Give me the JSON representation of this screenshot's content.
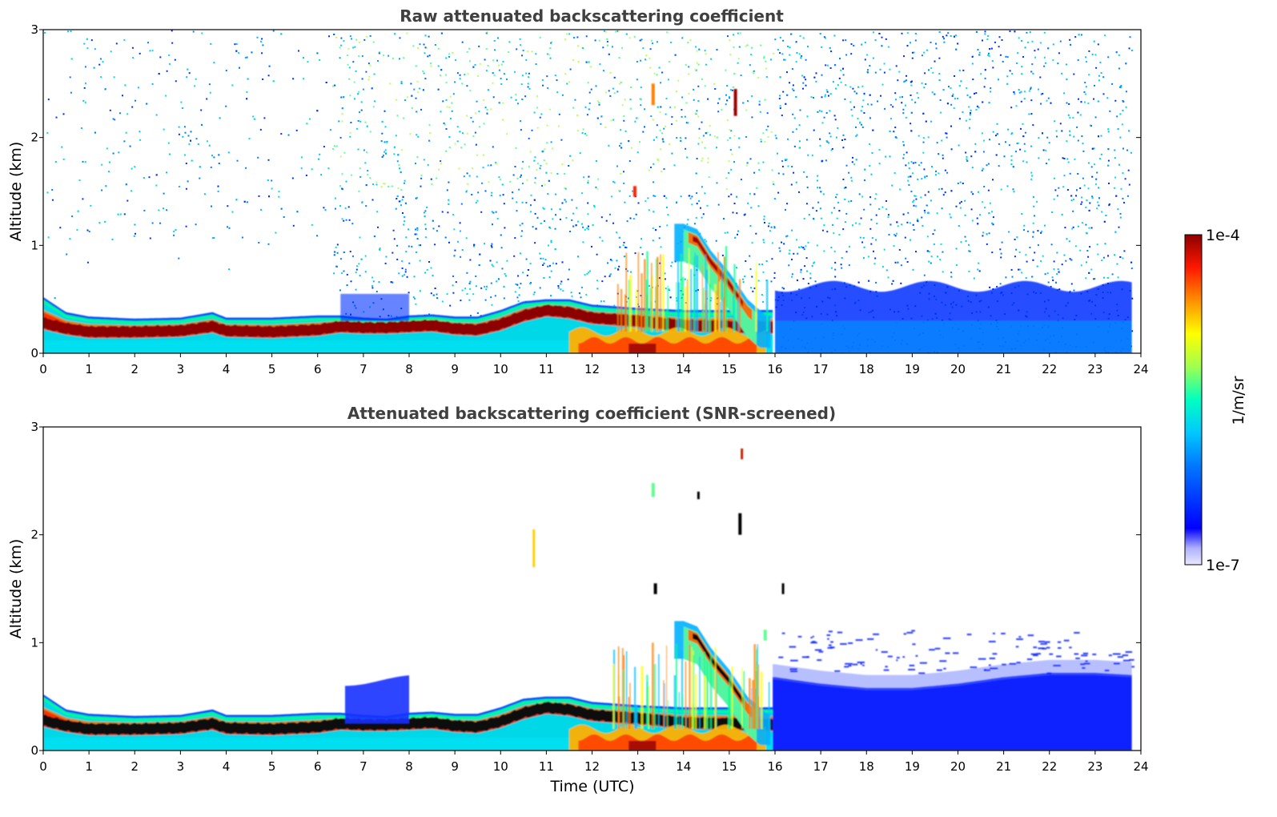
{
  "chart_data": [
    {
      "type": "heatmap",
      "title": "Raw attenuated backscattering coefficient",
      "xlabel": "",
      "ylabel": "Altitude (km)",
      "xlim": [
        0,
        24
      ],
      "ylim": [
        0,
        3
      ],
      "x_ticks": [
        0,
        1,
        2,
        3,
        4,
        5,
        6,
        7,
        8,
        9,
        10,
        11,
        12,
        13,
        14,
        15,
        16,
        17,
        18,
        19,
        20,
        21,
        22,
        23,
        24
      ],
      "y_ticks": [
        0,
        1,
        2,
        3
      ],
      "x_tick_labels": [
        "0",
        "1",
        "2",
        "3",
        "4",
        "5",
        "6",
        "7",
        "8",
        "9",
        "10",
        "11",
        "12",
        "13",
        "14",
        "15",
        "16",
        "17",
        "18",
        "19",
        "20",
        "21",
        "22",
        "23",
        "24"
      ],
      "y_tick_labels": [
        "0",
        "1",
        "2",
        "3"
      ],
      "data_end_time": 23.8,
      "layer_top_km": [
        [
          0,
          0.52
        ],
        [
          0.5,
          0.38
        ],
        [
          1,
          0.34
        ],
        [
          2,
          0.32
        ],
        [
          3,
          0.33
        ],
        [
          3.7,
          0.38
        ],
        [
          4,
          0.33
        ],
        [
          5,
          0.33
        ],
        [
          6,
          0.35
        ],
        [
          6.5,
          0.35
        ],
        [
          7,
          0.33
        ],
        [
          7.5,
          0.32
        ],
        [
          8,
          0.35
        ],
        [
          8.5,
          0.36
        ],
        [
          9,
          0.34
        ],
        [
          9.5,
          0.34
        ],
        [
          10,
          0.4
        ],
        [
          10.5,
          0.48
        ],
        [
          11,
          0.5
        ],
        [
          11.5,
          0.5
        ],
        [
          12,
          0.45
        ],
        [
          13,
          0.42
        ],
        [
          14,
          0.4
        ],
        [
          15,
          0.4
        ],
        [
          15.9,
          0.4
        ]
      ],
      "aerosol_layer_km": [
        [
          0,
          0.28
        ],
        [
          0.5,
          0.23
        ],
        [
          1,
          0.2
        ],
        [
          2,
          0.2
        ],
        [
          3,
          0.21
        ],
        [
          3.7,
          0.25
        ],
        [
          4,
          0.21
        ],
        [
          5,
          0.2
        ],
        [
          6,
          0.22
        ],
        [
          6.5,
          0.25
        ],
        [
          7,
          0.24
        ],
        [
          7.5,
          0.24
        ],
        [
          8,
          0.25
        ],
        [
          8.5,
          0.26
        ],
        [
          9,
          0.23
        ],
        [
          9.5,
          0.22
        ],
        [
          10,
          0.27
        ],
        [
          10.5,
          0.35
        ],
        [
          11,
          0.4
        ],
        [
          11.5,
          0.38
        ],
        [
          12,
          0.33
        ],
        [
          13,
          0.3
        ],
        [
          14,
          0.26
        ],
        [
          15,
          0.25
        ],
        [
          15.9,
          0.24
        ]
      ],
      "convective_plume_km": [
        [
          14.0,
          1.2
        ],
        [
          14.3,
          1.15
        ],
        [
          14.6,
          0.95
        ],
        [
          15.0,
          0.75
        ],
        [
          15.4,
          0.5
        ],
        [
          15.8,
          0.35
        ]
      ],
      "high_noise_period": [
        6.5,
        16.0
      ],
      "near_surface_high_period": [
        11.5,
        15.8
      ]
    },
    {
      "type": "heatmap",
      "title": "Attenuated backscattering coefficient (SNR-screened)",
      "xlabel": "Time (UTC)",
      "ylabel": "Altitude (km)",
      "xlim": [
        0,
        24
      ],
      "ylim": [
        0,
        3
      ],
      "x_ticks": [
        0,
        1,
        2,
        3,
        4,
        5,
        6,
        7,
        8,
        9,
        10,
        11,
        12,
        13,
        14,
        15,
        16,
        17,
        18,
        19,
        20,
        21,
        22,
        23,
        24
      ],
      "y_ticks": [
        0,
        1,
        2,
        3
      ],
      "x_tick_labels": [
        "0",
        "1",
        "2",
        "3",
        "4",
        "5",
        "6",
        "7",
        "8",
        "9",
        "10",
        "11",
        "12",
        "13",
        "14",
        "15",
        "16",
        "17",
        "18",
        "19",
        "20",
        "21",
        "22",
        "23",
        "24"
      ],
      "y_tick_labels": [
        "0",
        "1",
        "2",
        "3"
      ],
      "data_end_time": 23.8,
      "layer_top_km": [
        [
          0,
          0.52
        ],
        [
          0.5,
          0.38
        ],
        [
          1,
          0.34
        ],
        [
          2,
          0.32
        ],
        [
          3,
          0.33
        ],
        [
          3.7,
          0.38
        ],
        [
          4,
          0.33
        ],
        [
          5,
          0.33
        ],
        [
          6,
          0.35
        ],
        [
          6.5,
          0.35
        ],
        [
          7,
          0.33
        ],
        [
          7.5,
          0.32
        ],
        [
          8,
          0.35
        ],
        [
          8.5,
          0.36
        ],
        [
          9,
          0.34
        ],
        [
          9.5,
          0.34
        ],
        [
          10,
          0.4
        ],
        [
          10.5,
          0.48
        ],
        [
          11,
          0.5
        ],
        [
          11.5,
          0.5
        ],
        [
          12,
          0.45
        ],
        [
          13,
          0.42
        ],
        [
          14,
          0.4
        ],
        [
          15,
          0.4
        ],
        [
          15.9,
          0.4
        ]
      ],
      "aerosol_layer_km": [
        [
          0,
          0.28
        ],
        [
          0.5,
          0.23
        ],
        [
          1,
          0.2
        ],
        [
          2,
          0.2
        ],
        [
          3,
          0.21
        ],
        [
          3.7,
          0.25
        ],
        [
          4,
          0.21
        ],
        [
          5,
          0.2
        ],
        [
          6,
          0.22
        ],
        [
          6.5,
          0.25
        ],
        [
          7,
          0.24
        ],
        [
          7.5,
          0.24
        ],
        [
          8,
          0.25
        ],
        [
          8.5,
          0.26
        ],
        [
          9,
          0.23
        ],
        [
          9.5,
          0.22
        ],
        [
          10,
          0.27
        ],
        [
          10.5,
          0.35
        ],
        [
          11,
          0.4
        ],
        [
          11.5,
          0.38
        ],
        [
          12,
          0.33
        ],
        [
          13,
          0.3
        ],
        [
          14,
          0.26
        ],
        [
          15,
          0.25
        ],
        [
          15.9,
          0.24
        ]
      ],
      "blue_residual_layer": {
        "t_start": 6.6,
        "t_end": 8.0,
        "top_km": 0.65
      },
      "night_layer_top_km": [
        [
          16,
          0.68
        ],
        [
          17,
          0.62
        ],
        [
          18,
          0.58
        ],
        [
          19,
          0.58
        ],
        [
          20,
          0.62
        ],
        [
          21,
          0.68
        ],
        [
          22,
          0.72
        ],
        [
          23,
          0.72
        ],
        [
          23.8,
          0.7
        ]
      ],
      "convective_plume_km": [
        [
          14.0,
          1.2
        ],
        [
          14.3,
          1.15
        ],
        [
          14.6,
          0.95
        ],
        [
          15.0,
          0.75
        ],
        [
          15.4,
          0.5
        ],
        [
          15.8,
          0.35
        ]
      ],
      "near_surface_high_period": [
        11.5,
        15.8
      ]
    }
  ],
  "colorbar": {
    "label": "1/m/sr",
    "max_label": "1e-4",
    "min_label": "1e-7",
    "scale": "log",
    "range": [
      1e-07,
      0.0001
    ],
    "colors": [
      "#e8e8ff",
      "#0000ff",
      "#00b0ff",
      "#00ffd0",
      "#a0ff60",
      "#ffff00",
      "#ff9000",
      "#ff2000",
      "#900000"
    ]
  }
}
